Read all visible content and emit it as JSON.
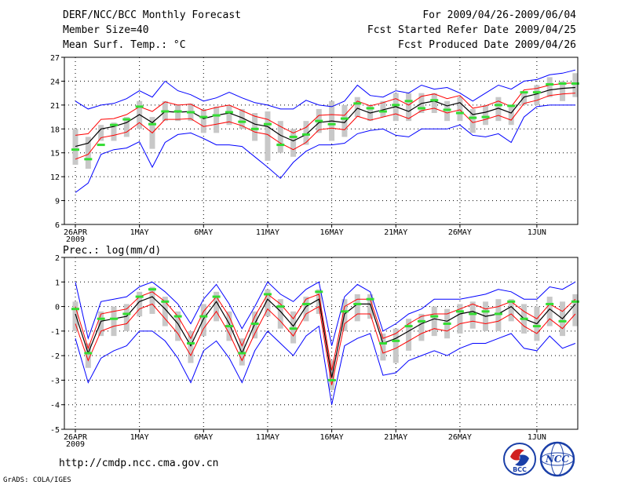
{
  "header": {
    "title": "DERF/NCC/BCC Monthly Forecast",
    "member_size": "Member Size=40",
    "variable": "Mean Surf. Temp.: °C",
    "period": "For 2009/04/26-2009/06/04",
    "started": "Fcst Started Refer Date 2009/04/25",
    "produced": "Fcst Produced Date 2009/04/26"
  },
  "footer": {
    "url": "http://cmdp.ncc.cma.gov.cn",
    "credit": "GrADS: COLA/IGES",
    "logo_left": "BCC",
    "logo_right": "NCC"
  },
  "colors": {
    "envelope": "#0000ff",
    "spread": "#ff0000",
    "mean": "#000000",
    "box": "#c8c8c8",
    "green": "#33dd33",
    "grid": "#000000"
  },
  "chart_data": [
    {
      "type": "line",
      "title": "Mean Surf. Temp.: °C",
      "ylim": [
        6,
        27
      ],
      "yticks": [
        6,
        9,
        12,
        15,
        18,
        21,
        24,
        27
      ],
      "xticks": [
        {
          "day": 0,
          "label": "26APR",
          "sub": "2009"
        },
        {
          "day": 5,
          "label": "1MAY"
        },
        {
          "day": 10,
          "label": "6MAY"
        },
        {
          "day": 15,
          "label": "11MAY"
        },
        {
          "day": 20,
          "label": "16MAY"
        },
        {
          "day": 25,
          "label": "21MAY"
        },
        {
          "day": 30,
          "label": "26MAY"
        },
        {
          "day": 36,
          "label": "1JUN"
        }
      ],
      "days": [
        0,
        1,
        2,
        3,
        4,
        5,
        6,
        7,
        8,
        9,
        10,
        11,
        12,
        13,
        14,
        15,
        16,
        17,
        18,
        19,
        20,
        21,
        22,
        23,
        24,
        25,
        26,
        27,
        28,
        29,
        30,
        31,
        32,
        33,
        34,
        35,
        36,
        37,
        38,
        39
      ],
      "mean": [
        15.8,
        16.2,
        18.0,
        18.3,
        18.8,
        19.8,
        18.8,
        20.2,
        20.1,
        20.2,
        19.3,
        19.7,
        20.0,
        19.4,
        18.6,
        18.3,
        17.2,
        16.5,
        17.3,
        18.8,
        19.0,
        18.8,
        20.6,
        20.0,
        20.4,
        20.8,
        20.2,
        21.2,
        21.5,
        20.9,
        21.3,
        19.8,
        20.1,
        20.6,
        20.0,
        22.0,
        22.4,
        22.9,
        23.1,
        23.2
      ],
      "upper": [
        17.2,
        17.4,
        19.2,
        19.3,
        19.8,
        20.8,
        20.2,
        21.4,
        21.0,
        21.1,
        20.3,
        20.7,
        21.0,
        20.3,
        19.6,
        19.2,
        18.3,
        17.5,
        18.2,
        19.7,
        19.8,
        19.7,
        21.5,
        20.9,
        21.3,
        21.8,
        21.0,
        22.1,
        22.4,
        21.8,
        22.2,
        20.6,
        20.9,
        21.5,
        20.8,
        22.9,
        23.1,
        23.5,
        23.7,
        23.8
      ],
      "lower": [
        14.2,
        14.8,
        16.9,
        17.2,
        17.6,
        18.8,
        17.5,
        19.2,
        19.2,
        19.3,
        18.3,
        18.6,
        18.9,
        18.4,
        17.6,
        17.3,
        16.2,
        15.4,
        16.3,
        17.9,
        18.1,
        17.9,
        19.6,
        19.1,
        19.5,
        19.9,
        19.3,
        20.3,
        20.6,
        20.0,
        20.4,
        18.8,
        19.2,
        19.7,
        19.1,
        21.2,
        21.6,
        22.2,
        22.4,
        22.5
      ],
      "max": [
        21.5,
        20.5,
        21.0,
        21.2,
        21.8,
        22.8,
        22.0,
        24.0,
        22.8,
        22.3,
        21.5,
        21.9,
        22.6,
        21.9,
        21.3,
        21.0,
        20.5,
        20.5,
        21.6,
        21.0,
        20.8,
        21.5,
        23.5,
        22.2,
        22.0,
        22.8,
        22.5,
        23.5,
        23.0,
        23.2,
        22.5,
        21.5,
        22.5,
        23.5,
        23.0,
        24.0,
        24.2,
        24.8,
        25.0,
        25.4
      ],
      "min": [
        10.0,
        11.2,
        14.8,
        15.4,
        15.6,
        16.4,
        13.2,
        16.3,
        17.3,
        17.5,
        16.8,
        16.0,
        16.0,
        15.8,
        14.5,
        13.2,
        11.8,
        13.8,
        15.2,
        16.0,
        16.0,
        16.2,
        17.4,
        17.8,
        18.0,
        17.2,
        17.0,
        18.0,
        18.0,
        18.0,
        18.5,
        17.2,
        17.0,
        17.4,
        16.3,
        19.5,
        20.8,
        21.0,
        21.0,
        21.0
      ],
      "box_high": [
        18.0,
        17.0,
        18.5,
        18.8,
        19.5,
        21.5,
        19.5,
        21.5,
        21.0,
        21.2,
        20.5,
        20.8,
        21.0,
        20.5,
        20.0,
        20.2,
        19.0,
        18.0,
        19.0,
        20.5,
        21.5,
        21.0,
        22.0,
        21.0,
        21.5,
        22.5,
        22.5,
        22.5,
        22.5,
        21.5,
        22.0,
        20.5,
        21.0,
        22.0,
        21.0,
        22.5,
        23.5,
        24.5,
        24.0,
        25.0
      ],
      "box_low": [
        13.5,
        13.0,
        16.5,
        16.5,
        17.0,
        18.0,
        15.5,
        19.0,
        19.0,
        19.0,
        17.5,
        17.5,
        18.5,
        18.0,
        16.5,
        14.0,
        15.0,
        14.5,
        16.0,
        17.5,
        16.5,
        17.0,
        19.5,
        19.0,
        19.5,
        19.0,
        19.0,
        20.0,
        20.0,
        19.0,
        19.0,
        17.5,
        18.5,
        19.0,
        18.5,
        21.0,
        21.0,
        22.0,
        21.5,
        22.0
      ],
      "green": [
        15.4,
        14.2,
        16.0,
        18.5,
        19.2,
        20.8,
        18.6,
        20.2,
        20.2,
        20.1,
        19.5,
        19.7,
        20.1,
        18.9,
        18.0,
        18.6,
        16.0,
        17.0,
        17.3,
        19.0,
        18.6,
        19.3,
        21.2,
        20.6,
        20.2,
        21.0,
        21.5,
        20.6,
        21.6,
        20.4,
        20.0,
        19.4,
        19.5,
        21.0,
        20.9,
        22.6,
        22.6,
        23.6,
        23.7,
        23.7
      ]
    },
    {
      "type": "line",
      "title": "Prec.: log(mm/d)",
      "ylim": [
        -5,
        2
      ],
      "yticks": [
        -5,
        -4,
        -3,
        -2,
        -1,
        0,
        1,
        2
      ],
      "xticks": [
        {
          "day": 0,
          "label": "26APR",
          "sub": "2009"
        },
        {
          "day": 5,
          "label": "1MAY"
        },
        {
          "day": 10,
          "label": "6MAY"
        },
        {
          "day": 15,
          "label": "11MAY"
        },
        {
          "day": 20,
          "label": "16MAY"
        },
        {
          "day": 25,
          "label": "21MAY"
        },
        {
          "day": 30,
          "label": "26MAY"
        },
        {
          "day": 36,
          "label": "1JUN"
        }
      ],
      "days": [
        0,
        1,
        2,
        3,
        4,
        5,
        6,
        7,
        8,
        9,
        10,
        11,
        12,
        13,
        14,
        15,
        16,
        17,
        18,
        19,
        20,
        21,
        22,
        23,
        24,
        25,
        26,
        27,
        28,
        29,
        30,
        31,
        32,
        33,
        34,
        35,
        36,
        37,
        38,
        39
      ],
      "mean": [
        -0.3,
        -1.9,
        -0.6,
        -0.5,
        -0.4,
        0.2,
        0.4,
        -0.1,
        -0.7,
        -1.6,
        -0.5,
        0.2,
        -0.7,
        -1.9,
        -0.7,
        0.3,
        -0.2,
        -0.8,
        0.0,
        0.3,
        -2.9,
        -0.3,
        0.1,
        0.1,
        -1.5,
        -1.3,
        -1.0,
        -0.7,
        -0.5,
        -0.6,
        -0.3,
        -0.2,
        -0.4,
        -0.3,
        0.0,
        -0.5,
        -0.7,
        -0.1,
        -0.5,
        0.1
      ],
      "upper": [
        0.0,
        -1.7,
        -0.3,
        -0.2,
        -0.1,
        0.4,
        0.6,
        0.2,
        -0.4,
        -1.3,
        -0.2,
        0.4,
        -0.4,
        -1.6,
        -0.4,
        0.5,
        0.1,
        -0.5,
        0.3,
        0.5,
        -2.6,
        0.0,
        0.3,
        0.3,
        -1.3,
        -1.1,
        -0.7,
        -0.4,
        -0.3,
        -0.3,
        -0.1,
        0.1,
        -0.1,
        0.0,
        0.2,
        -0.2,
        -0.5,
        0.1,
        -0.2,
        0.3
      ],
      "lower": [
        -0.7,
        -2.2,
        -1.0,
        -0.8,
        -0.7,
        -0.1,
        0.1,
        -0.5,
        -1.1,
        -2.0,
        -0.9,
        -0.2,
        -1.1,
        -2.2,
        -1.1,
        -0.1,
        -0.6,
        -1.2,
        -0.3,
        0.0,
        -3.2,
        -0.7,
        -0.3,
        -0.3,
        -1.9,
        -1.7,
        -1.4,
        -1.1,
        -0.9,
        -1.0,
        -0.7,
        -0.6,
        -0.7,
        -0.6,
        -0.3,
        -0.8,
        -1.1,
        -0.5,
        -0.9,
        -0.3
      ],
      "max": [
        1.0,
        -1.3,
        0.2,
        0.3,
        0.4,
        0.8,
        1.0,
        0.6,
        0.1,
        -0.7,
        0.3,
        0.9,
        0.1,
        -0.9,
        0.0,
        1.0,
        0.5,
        0.2,
        0.7,
        1.0,
        -1.6,
        0.4,
        0.9,
        0.6,
        -1.0,
        -0.7,
        -0.3,
        -0.1,
        0.3,
        0.3,
        0.3,
        0.4,
        0.5,
        0.7,
        0.6,
        0.3,
        0.3,
        0.8,
        0.7,
        1.0
      ],
      "min": [
        -1.3,
        -3.1,
        -2.1,
        -1.8,
        -1.6,
        -1.0,
        -1.0,
        -1.4,
        -2.1,
        -3.1,
        -1.8,
        -1.4,
        -2.1,
        -3.1,
        -1.8,
        -1.0,
        -1.5,
        -2.0,
        -1.2,
        -0.8,
        -4.0,
        -1.6,
        -1.3,
        -1.1,
        -2.8,
        -2.7,
        -2.2,
        -2.0,
        -1.8,
        -2.0,
        -1.7,
        -1.5,
        -1.5,
        -1.3,
        -1.1,
        -1.7,
        -1.8,
        -1.2,
        -1.7,
        -1.5
      ],
      "box_high": [
        0.2,
        -1.5,
        -0.2,
        0.0,
        0.1,
        0.6,
        0.8,
        0.4,
        -0.2,
        -1.0,
        0.1,
        0.6,
        -0.2,
        -1.3,
        -0.2,
        0.7,
        0.3,
        -0.2,
        0.4,
        0.7,
        -2.2,
        0.3,
        0.5,
        0.5,
        -1.1,
        -0.9,
        -0.5,
        -0.3,
        0.0,
        -0.1,
        0.1,
        0.2,
        0.2,
        0.3,
        0.3,
        0.1,
        0.0,
        0.4,
        0.2,
        0.5
      ],
      "box_low": [
        -1.0,
        -2.5,
        -1.2,
        -1.2,
        -1.0,
        -0.4,
        -0.3,
        -0.8,
        -1.4,
        -2.3,
        -1.2,
        -0.6,
        -1.4,
        -2.4,
        -1.3,
        -0.4,
        -0.9,
        -1.5,
        -0.6,
        -0.3,
        -3.4,
        -1.0,
        -0.6,
        -0.5,
        -2.2,
        -2.3,
        -1.8,
        -1.4,
        -1.2,
        -1.3,
        -1.1,
        -0.9,
        -1.0,
        -1.0,
        -0.6,
        -1.1,
        -1.4,
        -0.8,
        -1.2,
        -0.8
      ],
      "green": [
        -0.1,
        -1.9,
        -0.5,
        -0.5,
        -0.3,
        0.4,
        0.7,
        0.2,
        -0.4,
        -1.5,
        -0.4,
        0.4,
        -0.8,
        -1.9,
        -0.7,
        0.5,
        0.0,
        -0.9,
        0.1,
        0.6,
        -3.0,
        -0.2,
        0.1,
        0.3,
        -1.5,
        -1.4,
        -0.8,
        -0.6,
        -0.4,
        -0.7,
        -0.2,
        -0.3,
        -0.2,
        -0.3,
        0.2,
        -0.5,
        -0.8,
        0.1,
        -0.6,
        0.2
      ]
    }
  ]
}
